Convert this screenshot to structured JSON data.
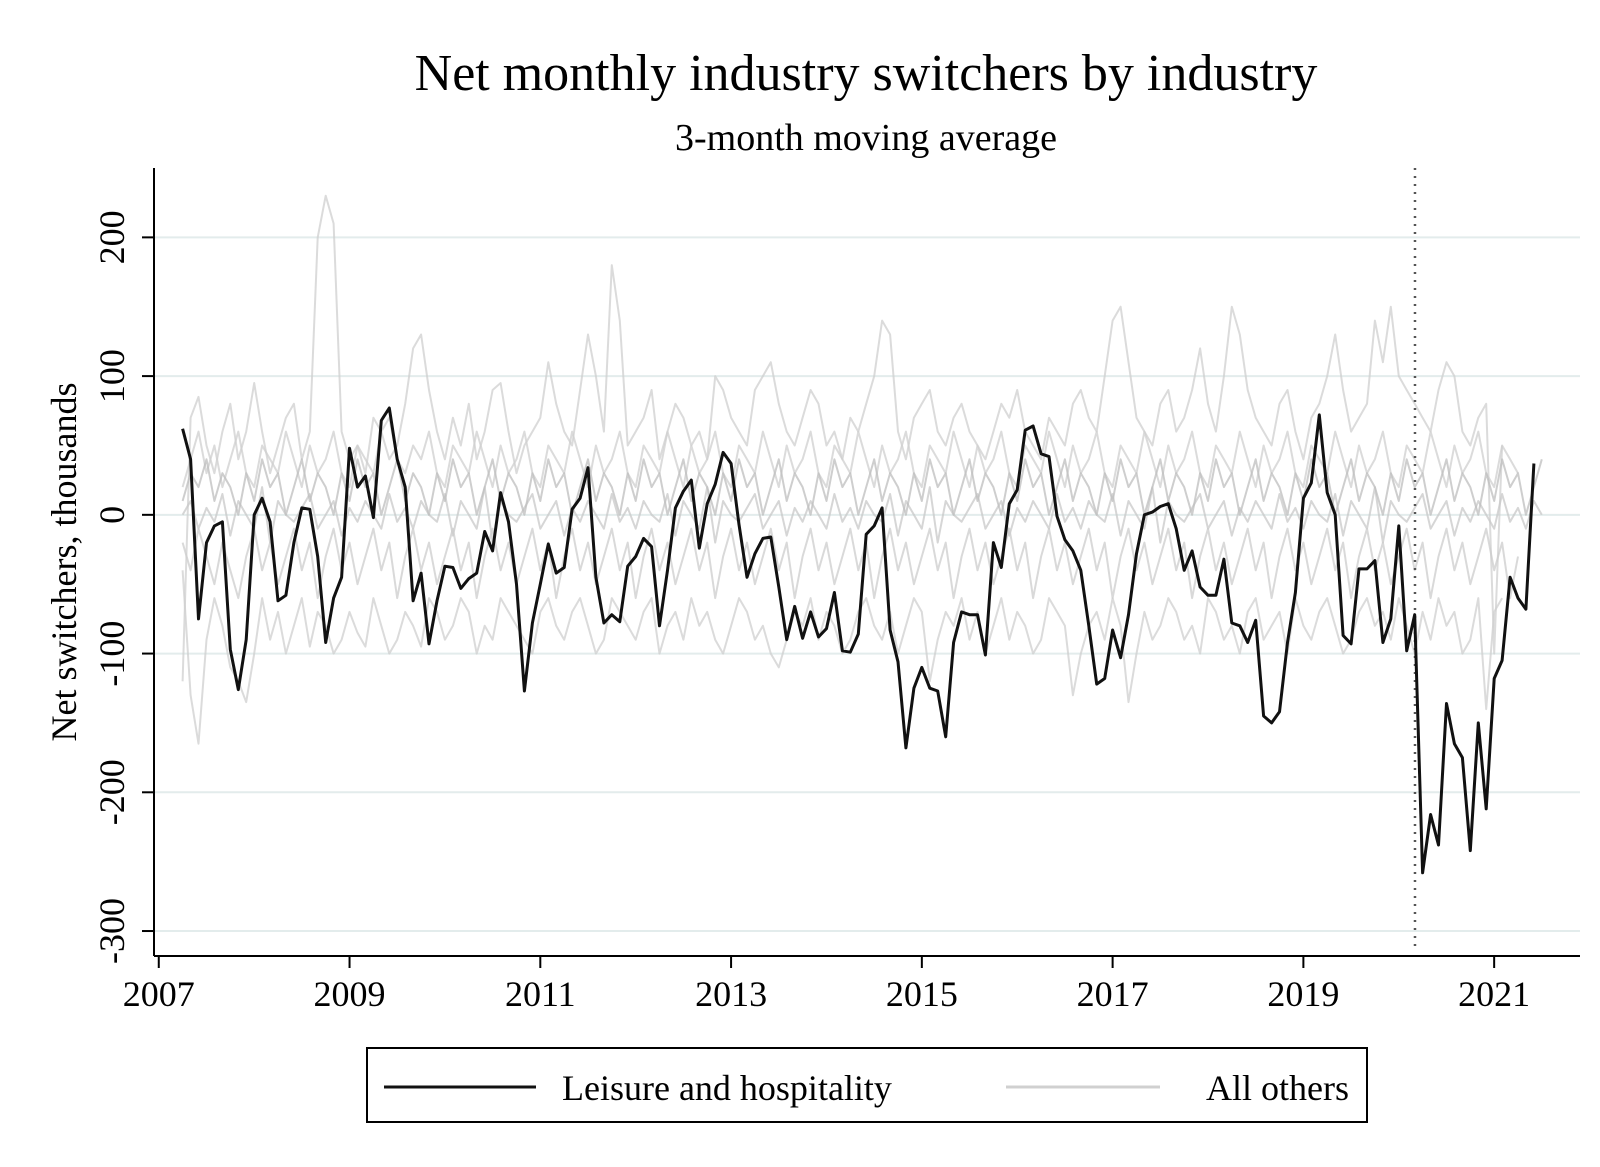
{
  "chart_data": {
    "type": "line",
    "title": "Net monthly industry switchers by industry",
    "subtitle": "3-month moving average",
    "xlabel": "",
    "ylabel": "Net switchers, thousands",
    "xlim": [
      2006.95,
      2021.9
    ],
    "ylim": [
      -318,
      250
    ],
    "x_ticks": [
      2007,
      2009,
      2011,
      2013,
      2015,
      2017,
      2019,
      2021
    ],
    "y_ticks": [
      -300,
      -200,
      -100,
      0,
      100,
      200
    ],
    "reference_line_x": 2020.17,
    "x_start": 2007.25,
    "x_step_months": 1,
    "grid": true,
    "legend": {
      "position": "bottom",
      "entries": [
        {
          "label": "Leisure and hospitality",
          "color": "#111111"
        },
        {
          "label": "All others",
          "color": "#d0d0d0"
        }
      ]
    },
    "series": [
      {
        "name": "Leisure and hospitality",
        "color": "#111111",
        "values": [
          62,
          40,
          -75,
          -20,
          -8,
          -5,
          -97,
          -126,
          -90,
          0,
          12,
          -5,
          -62,
          -58,
          -20,
          5,
          4,
          -30,
          -92,
          -60,
          -45,
          48,
          20,
          28,
          -2,
          68,
          77,
          40,
          20,
          -62,
          -42,
          -93,
          -62,
          -37,
          -38,
          -53,
          -46,
          -42,
          -12,
          -26,
          16,
          -5,
          -50,
          -127,
          -78,
          -50,
          -21,
          -42,
          -38,
          4,
          12,
          34,
          -45,
          -78,
          -72,
          -77,
          -37,
          -30,
          -17,
          -23,
          -80,
          -40,
          5,
          17,
          25,
          -24,
          8,
          22,
          45,
          37,
          -7,
          -45,
          -28,
          -17,
          -16,
          -52,
          -90,
          -66,
          -89,
          -70,
          -88,
          -82,
          -56,
          -98,
          -99,
          -86,
          -14,
          -8,
          5,
          -83,
          -106,
          -168,
          -125,
          -110,
          -125,
          -127,
          -160,
          -92,
          -70,
          -72,
          -72,
          -101,
          -20,
          -38,
          8,
          18,
          61,
          64,
          44,
          42,
          -1,
          -18,
          -26,
          -40,
          -80,
          -122,
          -118,
          -83,
          -103,
          -72,
          -28,
          0,
          2,
          6,
          8,
          -10,
          -40,
          -26,
          -52,
          -58,
          -58,
          -32,
          -78,
          -80,
          -92,
          -76,
          -145,
          -150,
          -142,
          -92,
          -56,
          12,
          23,
          72,
          16,
          0,
          -87,
          -93,
          -39,
          -39,
          -33,
          -92,
          -75,
          -8,
          -98,
          -72,
          -258,
          -216,
          -238,
          -136,
          -165,
          -175,
          -242,
          -150,
          -212,
          -118,
          -105,
          -45,
          -60,
          -68,
          37
        ]
      },
      {
        "name": "All others",
        "color": "#cfcfcf",
        "values": [
          -120,
          70,
          85,
          50,
          30,
          60,
          80,
          40,
          60,
          95,
          60,
          30,
          50,
          70,
          80,
          40,
          60,
          200,
          230,
          210,
          60,
          40,
          50,
          30,
          70,
          60,
          40,
          50,
          80,
          120,
          130,
          90,
          60,
          40,
          70,
          50,
          80,
          40,
          60,
          90,
          95,
          60,
          30,
          50,
          60,
          70,
          110,
          80,
          60,
          50,
          90,
          130,
          100,
          60,
          180,
          140,
          50,
          60,
          70,
          90,
          40,
          60,
          80,
          70,
          50,
          60,
          40,
          100,
          90,
          70,
          60,
          50,
          90,
          100,
          110,
          80,
          60,
          50,
          70,
          90,
          80,
          50,
          60,
          40,
          70,
          60,
          80,
          100,
          140,
          130,
          60,
          40,
          70,
          80,
          90,
          60,
          50,
          70,
          80,
          60,
          50,
          40,
          60,
          80,
          70,
          90,
          60,
          50,
          40,
          70,
          60,
          50,
          80,
          90,
          70,
          60,
          100,
          140,
          150,
          110,
          70,
          60,
          50,
          80,
          90,
          60,
          70,
          90,
          120,
          80,
          60,
          100,
          150,
          130,
          90,
          70,
          60,
          50,
          80,
          90,
          60,
          40,
          70,
          80,
          100,
          130,
          90,
          60,
          70,
          80,
          140,
          110,
          150,
          100,
          90,
          80,
          70,
          60,
          90,
          110,
          100,
          60,
          50,
          70,
          80,
          -100,
          50
        ]
      },
      {
        "name": "All others",
        "color": "#cfcfcf",
        "values": [
          -40,
          -130,
          -165,
          -90,
          -60,
          -80,
          -110,
          -120,
          -135,
          -100,
          -60,
          -90,
          -70,
          -100,
          -80,
          -60,
          -95,
          -70,
          -80,
          -100,
          -90,
          -70,
          -85,
          -95,
          -60,
          -80,
          -100,
          -90,
          -70,
          -80,
          -95,
          -60,
          -70,
          -90,
          -80,
          -60,
          -70,
          -100,
          -80,
          -90,
          -60,
          -70,
          -80,
          -90,
          -100,
          -70,
          -60,
          -80,
          -90,
          -70,
          -60,
          -80,
          -100,
          -90,
          -60,
          -70,
          -80,
          -90,
          -70,
          -60,
          -100,
          -80,
          -70,
          -90,
          -60,
          -80,
          -70,
          -90,
          -100,
          -80,
          -60,
          -70,
          -90,
          -80,
          -100,
          -110,
          -90,
          -70,
          -80,
          -60,
          -90,
          -70,
          -80,
          -100,
          -90,
          -70,
          -60,
          -80,
          -90,
          -70,
          -100,
          -80,
          -60,
          -70,
          -120,
          -90,
          -70,
          -80,
          -60,
          -90,
          -70,
          -100,
          -80,
          -60,
          -90,
          -70,
          -80,
          -100,
          -90,
          -60,
          -70,
          -80,
          -130,
          -100,
          -80,
          -70,
          -90,
          -60,
          -80,
          -135,
          -100,
          -70,
          -90,
          -80,
          -60,
          -70,
          -90,
          -80,
          -100,
          -60,
          -70,
          -90,
          -80,
          -100,
          -70,
          -60,
          -90,
          -80,
          -70,
          -100,
          -60,
          -80,
          -90,
          -70,
          -60,
          -80,
          -100,
          -90,
          -70,
          -60,
          -80,
          -70,
          -90,
          -60,
          -80,
          -100,
          -70,
          -90,
          -60,
          -80,
          -70,
          -100,
          -90,
          -60,
          -140,
          -70,
          -60
        ]
      },
      {
        "name": "All others",
        "color": "#cfcfcf",
        "values": [
          20,
          40,
          60,
          30,
          50,
          20,
          40,
          60,
          30,
          20,
          50,
          40,
          30,
          60,
          40,
          20,
          50,
          30,
          40,
          60,
          30,
          20,
          50,
          40,
          30,
          60,
          70,
          40,
          30,
          50,
          40,
          60,
          30,
          20,
          50,
          40,
          30,
          60,
          40,
          20,
          50,
          30,
          40,
          60,
          30,
          20,
          50,
          40,
          30,
          60,
          40,
          20,
          50,
          30,
          40,
          60,
          30,
          20,
          50,
          40,
          30,
          60,
          40,
          20,
          50,
          30,
          40,
          60,
          30,
          20,
          50,
          40,
          30,
          60,
          40,
          20,
          50,
          30,
          40,
          60,
          30,
          20,
          50,
          40,
          30,
          60,
          40,
          20,
          50,
          30,
          40,
          60,
          30,
          20,
          50,
          40,
          30,
          60,
          40,
          20,
          50,
          30,
          40,
          60,
          30,
          20,
          50,
          40,
          30,
          60,
          40,
          20,
          50,
          30,
          40,
          60,
          30,
          20,
          50,
          40,
          30,
          60,
          40,
          20,
          50,
          30,
          40,
          60,
          30,
          20,
          50,
          40,
          30,
          60,
          40,
          20,
          50,
          30,
          40,
          60,
          30,
          20,
          50,
          40,
          30,
          60,
          40,
          20,
          50,
          30,
          40,
          60,
          30,
          20,
          50,
          40,
          30,
          60,
          40,
          20,
          50,
          30,
          40,
          60,
          30,
          20,
          50,
          40,
          30
        ]
      },
      {
        "name": "All others",
        "color": "#c8c8c8",
        "values": [
          0,
          10,
          -10,
          5,
          -5,
          15,
          -15,
          10,
          0,
          -10,
          20,
          -20,
          10,
          0,
          -5,
          5,
          15,
          -10,
          0,
          10,
          -15,
          5,
          -5,
          10,
          0,
          -10,
          15,
          -5,
          5,
          -10,
          10,
          0,
          -5,
          15,
          -15,
          10,
          0,
          -10,
          20,
          -20,
          10,
          0,
          -5,
          5,
          15,
          -10,
          0,
          10,
          -15,
          5,
          -5,
          10,
          0,
          -10,
          15,
          -5,
          5,
          -10,
          10,
          0,
          -5,
          15,
          -15,
          10,
          0,
          -10,
          20,
          -20,
          10,
          0,
          -5,
          5,
          15,
          -10,
          0,
          10,
          -15,
          5,
          -5,
          10,
          0,
          -10,
          15,
          -5,
          5,
          -10,
          10,
          0,
          -5,
          15,
          -15,
          10,
          0,
          -10,
          20,
          -20,
          10,
          0,
          -5,
          5,
          15,
          -10,
          0,
          10,
          -15,
          5,
          -5,
          10,
          0,
          -10,
          15,
          -5,
          5,
          -10,
          10,
          0,
          -5,
          15,
          -15,
          10,
          0,
          -10,
          20,
          -20,
          10,
          0,
          -5,
          5,
          15,
          -10,
          0,
          10,
          -15,
          5,
          -5,
          10,
          0,
          -10,
          15,
          -5,
          5,
          -10,
          10,
          0,
          -5,
          15,
          -15,
          10,
          0,
          -10,
          20,
          -20,
          10,
          0,
          -5,
          5,
          15,
          -10,
          0,
          10,
          -15,
          5,
          -5,
          10,
          0,
          -10,
          15,
          -5,
          5,
          -10,
          10,
          0
        ]
      },
      {
        "name": "All others",
        "color": "#cccccc",
        "values": [
          -20,
          -40,
          -10,
          -30,
          -50,
          -20,
          -40,
          -60,
          -30,
          -10,
          -40,
          -20,
          -50,
          -30,
          -10,
          -40,
          -20,
          -60,
          -30,
          -10,
          -40,
          -20,
          -50,
          -30,
          -10,
          -40,
          -20,
          -60,
          -30,
          -10,
          -40,
          -20,
          -50,
          -30,
          -10,
          -40,
          -20,
          -60,
          -30,
          -10,
          -40,
          -20,
          -50,
          -30,
          -10,
          -40,
          -20,
          -60,
          -30,
          -10,
          -40,
          -20,
          -50,
          -30,
          -10,
          -40,
          -20,
          -60,
          -30,
          -10,
          -40,
          -20,
          -50,
          -30,
          -10,
          -40,
          -20,
          -60,
          -30,
          -10,
          -40,
          -20,
          -50,
          -30,
          -10,
          -40,
          -20,
          -60,
          -30,
          -10,
          -40,
          -20,
          -50,
          -30,
          -10,
          -40,
          -20,
          -60,
          -30,
          -10,
          -40,
          -20,
          -50,
          -30,
          -10,
          -40,
          -20,
          -60,
          -30,
          -10,
          -40,
          -20,
          -50,
          -30,
          -10,
          -40,
          -20,
          -60,
          -30,
          -10,
          -40,
          -20,
          -50,
          -30,
          -10,
          -40,
          -20,
          -60,
          -30,
          -10,
          -40,
          -20,
          -50,
          -30,
          -10,
          -40,
          -20,
          -60,
          -30,
          -10,
          -40,
          -20,
          -50,
          -30,
          -10,
          -40,
          -20,
          -60,
          -30,
          -10,
          -40,
          -20,
          -50,
          -30,
          -10,
          -40,
          -20,
          -60,
          -30,
          -10,
          -40,
          -20,
          -50,
          -30,
          -10,
          -40,
          -20,
          -60,
          -30,
          -10,
          -40,
          -20,
          -50,
          -30,
          -10,
          -40,
          -20,
          -60,
          -30
        ]
      },
      {
        "name": "All others",
        "color": "#bdbdbd",
        "values": [
          10,
          30,
          20,
          40,
          10,
          30,
          20,
          0,
          30,
          10,
          40,
          20,
          30,
          0,
          20,
          40,
          10,
          30,
          20,
          0,
          30,
          10,
          40,
          20,
          30,
          0,
          20,
          40,
          10,
          30,
          20,
          0,
          30,
          10,
          40,
          20,
          30,
          0,
          20,
          40,
          10,
          30,
          20,
          0,
          30,
          10,
          40,
          20,
          30,
          0,
          20,
          40,
          10,
          30,
          20,
          0,
          30,
          10,
          40,
          20,
          30,
          0,
          20,
          40,
          10,
          30,
          20,
          0,
          30,
          10,
          40,
          20,
          30,
          0,
          20,
          40,
          10,
          30,
          20,
          0,
          30,
          10,
          40,
          20,
          30,
          0,
          20,
          40,
          10,
          30,
          20,
          0,
          30,
          10,
          40,
          20,
          30,
          0,
          20,
          40,
          10,
          30,
          20,
          0,
          30,
          10,
          40,
          20,
          30,
          0,
          20,
          40,
          10,
          30,
          20,
          0,
          30,
          10,
          40,
          20,
          30,
          0,
          20,
          40,
          10,
          30,
          20,
          0,
          30,
          10,
          40,
          20,
          30,
          0,
          20,
          40,
          10,
          30,
          20,
          0,
          30,
          10,
          40,
          20,
          30,
          0,
          20,
          40,
          10,
          30,
          20,
          0,
          30,
          10,
          40,
          20,
          30,
          0,
          20,
          40,
          10,
          30,
          20,
          0,
          30,
          10,
          40,
          20,
          30,
          0,
          20,
          40
        ]
      }
    ]
  }
}
